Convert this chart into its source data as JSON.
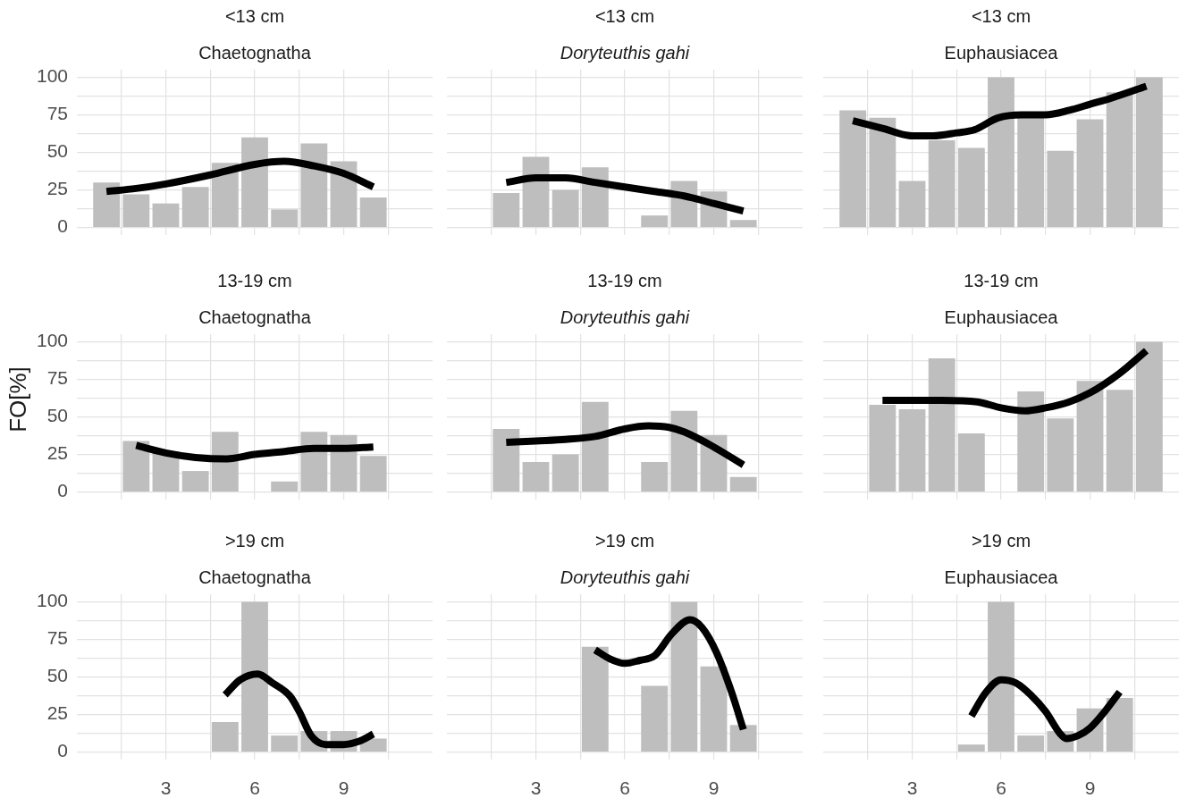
{
  "chart_data": [
    {
      "type": "bar",
      "title": "<13 cm",
      "subtitle": "Chaetognatha",
      "xlim": [
        0,
        12
      ],
      "xticks": [
        {
          "value": 1.5,
          "label": null
        },
        3,
        {
          "value": 4.5,
          "label": null
        },
        6,
        {
          "value": 7.5,
          "label": null
        },
        9,
        {
          "value": 10.5,
          "label": null
        }
      ],
      "ylim": [
        -5,
        105
      ],
      "yticks": [
        0,
        {
          "value": 12.5,
          "label": null
        },
        25,
        {
          "value": 37.5,
          "label": null
        },
        50,
        {
          "value": 62.5,
          "label": null
        },
        75,
        {
          "value": 87.5,
          "label": null
        },
        100
      ],
      "grid": true,
      "tick_labels": "y",
      "series": [
        {
          "color": "#bebebe",
          "x": [
            1,
            2,
            3,
            4,
            5,
            6,
            7,
            8,
            9,
            10
          ],
          "values": [
            30,
            22,
            16,
            27,
            43,
            60,
            12,
            56,
            44,
            20
          ]
        },
        {
          "type": "line",
          "color": "#000000",
          "x": [
            1,
            2,
            3,
            4.5,
            6,
            7,
            8,
            9,
            10
          ],
          "values": [
            24,
            26,
            29,
            35,
            42,
            44,
            41,
            36,
            27
          ]
        }
      ]
    },
    {
      "type": "bar",
      "title": "<13 cm",
      "subtitle": "Doryteuthis gahi",
      "xlim": [
        0,
        12
      ],
      "xticks": [
        {
          "value": 1.5,
          "label": null
        },
        3,
        {
          "value": 4.5,
          "label": null
        },
        6,
        {
          "value": 7.5,
          "label": null
        },
        9,
        {
          "value": 10.5,
          "label": null
        }
      ],
      "ylim": [
        -5,
        105
      ],
      "yticks": [
        0,
        {
          "value": 12.5,
          "label": null
        },
        25,
        {
          "value": 37.5,
          "label": null
        },
        50,
        {
          "value": 62.5,
          "label": null
        },
        75,
        {
          "value": 87.5,
          "label": null
        },
        100
      ],
      "grid": true,
      "tick_labels": false,
      "series": [
        {
          "color": "#bebebe",
          "x": [
            2,
            3,
            4,
            5,
            7,
            8,
            9,
            10
          ],
          "values": [
            23,
            47,
            25,
            40,
            8,
            31,
            24,
            5
          ]
        },
        {
          "type": "line",
          "color": "#000000",
          "x": [
            2,
            3,
            4,
            5,
            6,
            7,
            8,
            9,
            10
          ],
          "values": [
            30,
            33,
            33,
            30,
            27,
            24,
            21,
            16,
            11
          ]
        }
      ]
    },
    {
      "type": "bar",
      "title": "<13 cm",
      "subtitle": "Euphausiacea",
      "xlim": [
        0,
        12
      ],
      "xticks": [
        {
          "value": 1.5,
          "label": null
        },
        3,
        {
          "value": 4.5,
          "label": null
        },
        6,
        {
          "value": 7.5,
          "label": null
        },
        9,
        {
          "value": 10.5,
          "label": null
        }
      ],
      "ylim": [
        -5,
        105
      ],
      "yticks": [
        0,
        {
          "value": 12.5,
          "label": null
        },
        25,
        {
          "value": 37.5,
          "label": null
        },
        50,
        {
          "value": 62.5,
          "label": null
        },
        75,
        {
          "value": 87.5,
          "label": null
        },
        100
      ],
      "grid": true,
      "tick_labels": false,
      "series": [
        {
          "color": "#bebebe",
          "x": [
            1,
            2,
            3,
            4,
            5,
            6,
            7,
            8,
            9,
            10,
            11
          ],
          "values": [
            78,
            73,
            31,
            58,
            53,
            100,
            74,
            51,
            72,
            90,
            100
          ]
        },
        {
          "type": "line",
          "color": "#000000",
          "x": [
            1,
            2,
            3,
            3.7,
            4.5,
            5.1,
            5.9,
            6.7,
            7.5,
            8.3,
            9,
            9.7,
            10.9
          ],
          "values": [
            71,
            66,
            61,
            61,
            63,
            65,
            73,
            75,
            75,
            78,
            82,
            86,
            94
          ]
        }
      ]
    },
    {
      "type": "bar",
      "title": "13-19 cm",
      "subtitle": "Chaetognatha",
      "ylabel": "FO[%]",
      "xlim": [
        0,
        12
      ],
      "xticks": [
        {
          "value": 1.5,
          "label": null
        },
        3,
        {
          "value": 4.5,
          "label": null
        },
        6,
        {
          "value": 7.5,
          "label": null
        },
        9,
        {
          "value": 10.5,
          "label": null
        }
      ],
      "ylim": [
        -5,
        105
      ],
      "yticks": [
        0,
        {
          "value": 12.5,
          "label": null
        },
        25,
        {
          "value": 37.5,
          "label": null
        },
        50,
        {
          "value": 62.5,
          "label": null
        },
        75,
        {
          "value": 87.5,
          "label": null
        },
        100
      ],
      "grid": true,
      "tick_labels": "y",
      "series": [
        {
          "color": "#bebebe",
          "x": [
            2,
            3,
            4,
            5,
            7,
            8,
            9,
            10
          ],
          "values": [
            34,
            27,
            14,
            40,
            7,
            40,
            38,
            24
          ]
        },
        {
          "type": "line",
          "color": "#000000",
          "x": [
            2,
            3,
            4,
            5,
            6,
            7,
            8,
            9,
            10
          ],
          "values": [
            31,
            26,
            23,
            22,
            25,
            27,
            29,
            29,
            30
          ]
        }
      ]
    },
    {
      "type": "bar",
      "title": "13-19 cm",
      "subtitle": "Doryteuthis gahi",
      "xlim": [
        0,
        12
      ],
      "xticks": [
        {
          "value": 1.5,
          "label": null
        },
        3,
        {
          "value": 4.5,
          "label": null
        },
        6,
        {
          "value": 7.5,
          "label": null
        },
        9,
        {
          "value": 10.5,
          "label": null
        }
      ],
      "ylim": [
        -5,
        105
      ],
      "yticks": [
        0,
        {
          "value": 12.5,
          "label": null
        },
        25,
        {
          "value": 37.5,
          "label": null
        },
        50,
        {
          "value": 62.5,
          "label": null
        },
        75,
        {
          "value": 87.5,
          "label": null
        },
        100
      ],
      "grid": true,
      "tick_labels": false,
      "series": [
        {
          "color": "#bebebe",
          "x": [
            2,
            3,
            4,
            5,
            7,
            8,
            9,
            10
          ],
          "values": [
            42,
            20,
            25,
            60,
            20,
            54,
            38,
            10
          ]
        },
        {
          "type": "line",
          "color": "#000000",
          "x": [
            2,
            3,
            4,
            5,
            6,
            6.8,
            7.5,
            8,
            9,
            10
          ],
          "values": [
            33,
            34,
            35,
            37,
            42,
            44,
            43,
            40,
            30,
            18
          ]
        }
      ]
    },
    {
      "type": "bar",
      "title": "13-19 cm",
      "subtitle": "Euphausiacea",
      "xlim": [
        0,
        12
      ],
      "xticks": [
        {
          "value": 1.5,
          "label": null
        },
        3,
        {
          "value": 4.5,
          "label": null
        },
        6,
        {
          "value": 7.5,
          "label": null
        },
        9,
        {
          "value": 10.5,
          "label": null
        }
      ],
      "ylim": [
        -5,
        105
      ],
      "yticks": [
        0,
        {
          "value": 12.5,
          "label": null
        },
        25,
        {
          "value": 37.5,
          "label": null
        },
        50,
        {
          "value": 62.5,
          "label": null
        },
        75,
        {
          "value": 87.5,
          "label": null
        },
        100
      ],
      "grid": true,
      "tick_labels": false,
      "series": [
        {
          "color": "#bebebe",
          "x": [
            2,
            3,
            4,
            5,
            7,
            8,
            9,
            10,
            11
          ],
          "values": [
            58,
            55,
            89,
            39,
            67,
            49,
            74,
            68,
            100
          ]
        },
        {
          "type": "line",
          "color": "#000000",
          "x": [
            2,
            3,
            4,
            5.2,
            6,
            6.8,
            7.5,
            8.3,
            9,
            10,
            10.9
          ],
          "values": [
            61,
            61,
            61,
            60,
            56,
            54,
            56,
            60,
            66,
            79,
            94
          ]
        }
      ]
    },
    {
      "type": "bar",
      "title": ">19 cm",
      "subtitle": "Chaetognatha",
      "xlim": [
        0,
        12
      ],
      "xticks": [
        {
          "value": 1.5,
          "label": null
        },
        3,
        {
          "value": 4.5,
          "label": null
        },
        6,
        {
          "value": 7.5,
          "label": null
        },
        9,
        {
          "value": 10.5,
          "label": null
        }
      ],
      "ylim": [
        -5,
        105
      ],
      "yticks": [
        0,
        {
          "value": 12.5,
          "label": null
        },
        25,
        {
          "value": 37.5,
          "label": null
        },
        50,
        {
          "value": 62.5,
          "label": null
        },
        75,
        {
          "value": 87.5,
          "label": null
        },
        100
      ],
      "grid": true,
      "series": [
        {
          "color": "#bebebe",
          "x": [
            5,
            6,
            7,
            8,
            9,
            10
          ],
          "values": [
            20,
            100,
            11,
            14,
            14,
            9
          ]
        },
        {
          "type": "line",
          "color": "#000000",
          "x": [
            5,
            5.5,
            6.1,
            6.6,
            7.2,
            7.5,
            7.9,
            8.4,
            9,
            9.5,
            10
          ],
          "values": [
            38,
            48,
            52,
            46,
            37,
            27,
            11,
            5,
            5,
            7,
            12
          ]
        }
      ]
    },
    {
      "type": "bar",
      "title": ">19 cm",
      "subtitle": "Doryteuthis gahi",
      "xlim": [
        0,
        12
      ],
      "xticks": [
        {
          "value": 1.5,
          "label": null
        },
        3,
        {
          "value": 4.5,
          "label": null
        },
        6,
        {
          "value": 7.5,
          "label": null
        },
        9,
        {
          "value": 10.5,
          "label": null
        }
      ],
      "ylim": [
        -5,
        105
      ],
      "yticks": [
        0,
        {
          "value": 12.5,
          "label": null
        },
        25,
        {
          "value": 37.5,
          "label": null
        },
        50,
        {
          "value": 62.5,
          "label": null
        },
        75,
        {
          "value": 87.5,
          "label": null
        },
        100
      ],
      "grid": true,
      "tick_labels": "x",
      "series": [
        {
          "color": "#bebebe",
          "x": [
            5,
            7,
            8,
            9,
            10
          ],
          "values": [
            70,
            44,
            100,
            57,
            18
          ]
        },
        {
          "type": "line",
          "color": "#000000",
          "x": [
            5,
            5.5,
            6,
            6.5,
            7,
            7.6,
            8.2,
            8.6,
            9.1,
            9.6,
            10
          ],
          "values": [
            68,
            62,
            59,
            61,
            64,
            79,
            88,
            83,
            66,
            40,
            15
          ]
        }
      ]
    },
    {
      "type": "bar",
      "title": ">19 cm",
      "subtitle": "Euphausiacea",
      "xlim": [
        0,
        12
      ],
      "xticks": [
        {
          "value": 1.5,
          "label": null
        },
        3,
        {
          "value": 4.5,
          "label": null
        },
        6,
        {
          "value": 7.5,
          "label": null
        },
        9,
        {
          "value": 10.5,
          "label": null
        }
      ],
      "ylim": [
        -5,
        105
      ],
      "yticks": [
        0,
        {
          "value": 12.5,
          "label": null
        },
        25,
        {
          "value": 37.5,
          "label": null
        },
        50,
        {
          "value": 62.5,
          "label": null
        },
        75,
        {
          "value": 87.5,
          "label": null
        },
        100
      ],
      "grid": true,
      "tick_labels": "x",
      "series": [
        {
          "color": "#bebebe",
          "x": [
            5,
            6,
            7,
            8,
            9,
            10
          ],
          "values": [
            5,
            100,
            11,
            14,
            29,
            36
          ]
        },
        {
          "type": "line",
          "color": "#000000",
          "x": [
            5,
            5.5,
            6,
            6.5,
            7,
            7.5,
            8,
            8.2,
            8.6,
            9,
            9.5,
            10
          ],
          "values": [
            24,
            40,
            48,
            46,
            38,
            27,
            12,
            9,
            11,
            16,
            27,
            40
          ]
        }
      ]
    }
  ]
}
